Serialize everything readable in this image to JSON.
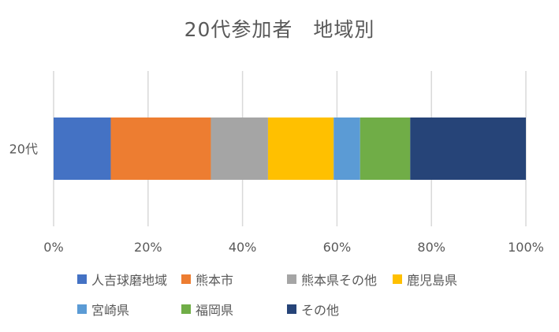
{
  "chart_data": {
    "type": "bar",
    "orientation": "horizontal",
    "stacked": "percent",
    "title": "20代参加者　地域別",
    "categories": [
      "20代"
    ],
    "series": [
      {
        "name": "人吉球磨地域",
        "color": "#4472C4",
        "values": [
          12.1
        ]
      },
      {
        "name": "熊本市",
        "color": "#ED7D31",
        "values": [
          21.2
        ]
      },
      {
        "name": "熊本県その他",
        "color": "#A5A5A5",
        "values": [
          12.1
        ]
      },
      {
        "name": "鹿児島県",
        "color": "#FFC000",
        "values": [
          13.9
        ]
      },
      {
        "name": "宮崎県",
        "color": "#5B9BD5",
        "values": [
          5.6
        ]
      },
      {
        "name": "福岡県",
        "color": "#70AD47",
        "values": [
          10.6
        ]
      },
      {
        "name": "その他",
        "color": "#264478",
        "values": [
          24.5
        ]
      }
    ],
    "xlim": [
      0,
      100
    ],
    "xticks": [
      "0%",
      "20%",
      "40%",
      "60%",
      "80%",
      "100%"
    ],
    "grid": true,
    "legend_position": "bottom"
  }
}
